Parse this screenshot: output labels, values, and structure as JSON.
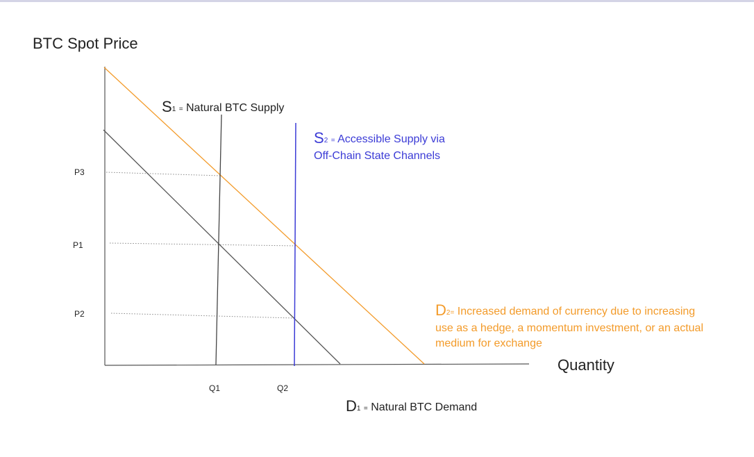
{
  "title": "BTC Spot Price",
  "x_axis_label": "Quantity",
  "y_ticks": [
    "P3",
    "P1",
    "P2"
  ],
  "x_ticks": [
    "Q1",
    "Q2"
  ],
  "curves": {
    "s1": {
      "letter": "S",
      "subscript": "1",
      "eq": "=",
      "text": "Natural BTC Supply",
      "color": "#222222"
    },
    "s2": {
      "letter": "S",
      "subscript": "2",
      "eq": "=",
      "line1": "Accessible Supply via",
      "line2": "Off-Chain State Channels",
      "color": "#3b3bd6"
    },
    "d1": {
      "letter": "D",
      "subscript": "1",
      "eq": "=",
      "text": "Natural BTC Demand",
      "color": "#555555"
    },
    "d2": {
      "letter": "D",
      "subscript": "2",
      "eq": "=",
      "line1": "Increased demand of currency due to increasing",
      "line2": "use as a hedge, a momentum investment,  or an actual",
      "line3": "medium for exchange",
      "color": "#f39b2a"
    }
  },
  "colors": {
    "axis": "#555555",
    "supply": "#3b3bd6",
    "demand_increase": "#f39b2a",
    "gridline": "#888888"
  }
}
